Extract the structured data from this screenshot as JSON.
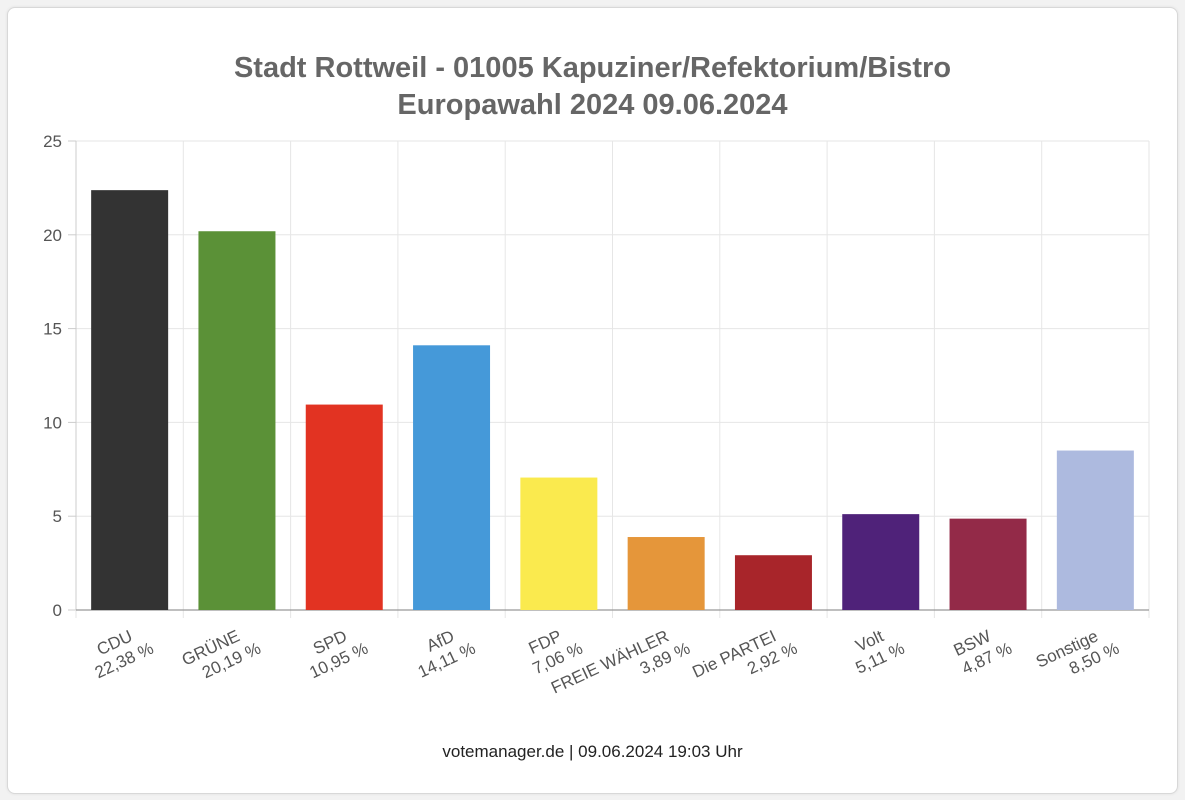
{
  "chart_data": {
    "type": "bar",
    "title_line1": "Stadt Rottweil - 01005 Kapuziner/Refektorium/Bistro",
    "title_line2": "Europawahl 2024 09.06.2024",
    "categories": [
      "CDU",
      "GRÜNE",
      "SPD",
      "AfD",
      "FDP",
      "FREIE WÄHLER",
      "Die PARTEI",
      "Volt",
      "BSW",
      "Sonstige"
    ],
    "percent_labels": [
      "22,38 %",
      "20,19 %",
      "10,95 %",
      "14,11 %",
      "7,06 %",
      "3,89 %",
      "2,92 %",
      "5,11 %",
      "4,87 %",
      "8,50 %"
    ],
    "values": [
      22.38,
      20.19,
      10.95,
      14.11,
      7.06,
      3.89,
      2.92,
      5.11,
      4.87,
      8.5
    ],
    "colors": [
      "#333333",
      "#5b9137",
      "#e23322",
      "#4599d9",
      "#faea4e",
      "#e5963a",
      "#a8252a",
      "#4f2279",
      "#932a48",
      "#adbadf"
    ],
    "ylim": [
      0,
      25
    ],
    "yticks": [
      "0",
      "5",
      "10",
      "15",
      "20",
      "25"
    ],
    "grid": true,
    "xlabel": "",
    "ylabel": ""
  },
  "footer": "votemanager.de | 09.06.2024 19:03 Uhr"
}
